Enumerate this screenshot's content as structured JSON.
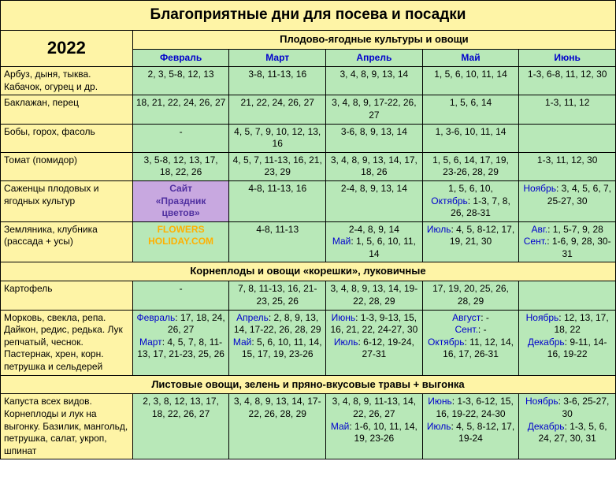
{
  "title": "Благоприятные дни для посева и посадки",
  "year": "2022",
  "section1": "Плодово-ягодные культуры и овощи",
  "section2": "Корнеплоды и овощи «корешки», луковичные",
  "section3": "Листовые овощи, зелень и пряно-вкусовые травы + выгонка",
  "months": {
    "feb": "Февраль",
    "mar": "Март",
    "apr": "Апрель",
    "may": "Май",
    "jun": "Июнь"
  },
  "wm1a": "Сайт",
  "wm1b": "«Праздник",
  "wm1c": "цветов»",
  "wm2a": "FLOWERS",
  "wm2b": "HOLIDAY.COM",
  "r1": {
    "crop": "Арбуз, дыня, тыква. Кабачок, огурец и др.",
    "feb": "2, 3, 5-8, 12, 13",
    "mar": "3-8, 11-13, 16",
    "apr": "3, 4, 8, 9, 13, 14",
    "may": "1, 5, 6, 10, 11, 14",
    "jun": "1-3, 6-8, 11, 12, 30"
  },
  "r2": {
    "crop": "Баклажан, перец",
    "feb": "18, 21, 22, 24, 26, 27",
    "mar": "21, 22, 24, 26, 27",
    "apr": "3, 4, 8, 9, 17-22, 26, 27",
    "may": "1, 5, 6, 14",
    "jun": "1-3, 11, 12"
  },
  "r3": {
    "crop": "Бобы, горох, фасоль",
    "feb": "-",
    "mar": "4, 5, 7, 9, 10, 12, 13, 16",
    "apr": "3-6, 8, 9, 13, 14",
    "may": "1, 3-6, 10, 11, 14",
    "jun": ""
  },
  "r4": {
    "crop": "Томат (помидор)",
    "feb": "3, 5-8, 12, 13, 17, 18, 22, 26",
    "mar": "4, 5, 7, 11-13, 16, 21, 23, 29",
    "apr": "3, 4, 8, 9, 13, 14, 17, 18, 26",
    "may": "1, 5, 6, 14, 17, 19,  23-26, 28, 29",
    "jun": "1-3, 11, 12, 30"
  },
  "r5": {
    "crop": "Саженцы плодовых и ягодных культур",
    "mar": "4-8, 11-13, 16",
    "apr": "2-4, 8, 9, 13, 14",
    "may_l1": "1, 5, 6, 10,",
    "may_l2": "Октябрь",
    "may_l2v": ": 1-3, 7, 8, 26, 28-31",
    "jun_l1": "Ноябрь",
    "jun_l1v": ": 3, 4, 5, 6, 7, 25-27, 30"
  },
  "r6": {
    "crop": "Земляника, клубника (рассада + усы)",
    "mar": "4-8, 11-13",
    "apr_l1": "2-4, 8, 9, 14",
    "apr_l2": "Май",
    "apr_l2v": ": 1, 5, 6, 10, 11, 14",
    "may_l1": "Июль",
    "may_l1v": ": 4, 5, 8-12, 17, 19, 21, 30",
    "jun_l1": "Авг.",
    "jun_l1v": ": 1, 5-7, 9, 28",
    "jun_l2": "Сент.",
    "jun_l2v": ": 1-6, 9, 28, 30-31"
  },
  "r7": {
    "crop": "Картофель",
    "feb": "-",
    "mar": "7, 8, 11-13, 16, 21-23, 25, 26",
    "apr": "3, 4, 8, 9, 13, 14, 19-22, 28, 29",
    "may": "17, 19, 20, 25, 26, 28, 29",
    "jun": ""
  },
  "r8": {
    "crop": "Морковь, свекла, репа. Дайкон, редис, редька. Лук репчатый, чеснок. Пастернак, хрен, корн. петрушка и сельдерей",
    "feb_l1": "Февраль",
    "feb_l1v": ": 17, 18, 24, 26, 27",
    "feb_l2": "Март",
    "feb_l2v": ": 4, 5, 7, 8, 11-13, 17, 21-23, 25, 26",
    "mar_l1": "Апрель",
    "mar_l1v": ": 2, 8, 9, 13, 14, 17-22, 26, 28, 29",
    "mar_l2": "Май",
    "mar_l2v": ": 5, 6, 10, 11, 14, 15, 17, 19, 23-26",
    "apr_l1": "Июнь",
    "apr_l1v": ": 1-3, 9-13, 15, 16, 21, 22, 24-27, 30",
    "apr_l2": "Июль",
    "apr_l2v": ": 6-12, 19-24, 27-31",
    "may_l1": "Август",
    "may_l1v": ": -",
    "may_l2": "Сент.",
    "may_l2v": ": -",
    "may_l3": "Октябрь",
    "may_l3v": ": 11, 12, 14, 16, 17, 26-31",
    "jun_l1": "Ноябрь",
    "jun_l1v": ": 12, 13, 17, 18, 22",
    "jun_l2": "Декабрь",
    "jun_l2v": ": 9-11, 14-16, 19-22"
  },
  "r9": {
    "crop": "Капуста всех видов. Корнеплоды и лук на выгонку. Базилик, мангольд, петрушка, салат, укроп, шпинат",
    "feb": "2, 3, 8, 12, 13, 17, 18, 22, 26, 27",
    "mar": "3, 4, 8, 9, 13, 14, 17-22, 26, 28, 29",
    "apr_l1": "3, 4, 8, 9, 11-13, 14, 22, 26, 27",
    "apr_l2": "Май",
    "apr_l2v": ": 1-6, 10, 11, 14, 19, 23-26",
    "may_l1": "Июнь",
    "may_l1v": ": 1-3, 6-12, 15, 16, 19-22, 24-30",
    "may_l2": "Июль",
    "may_l2v": ": 4, 5, 8-12, 17, 19-24",
    "jun_l1": "Ноябрь",
    "jun_l1v": ": 3-6, 25-27, 30",
    "jun_l2": "Декабрь",
    "jun_l2v": ": 1-3, 5, 6, 24, 27, 30, 31"
  }
}
